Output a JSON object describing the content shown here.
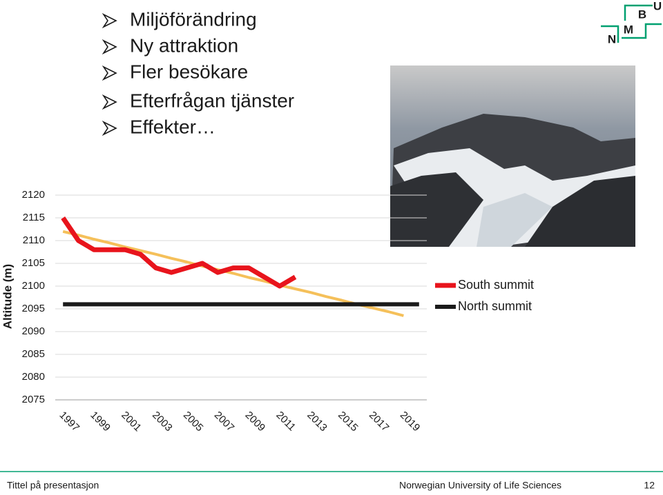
{
  "slide": {
    "bullets": [
      "Miljöförändring",
      "Ny attraktion",
      "Fler besökare",
      "Efterfrågan tjänster",
      "Effekter…"
    ],
    "logo": [
      "N",
      "M",
      "B",
      "U"
    ]
  },
  "chart_data": {
    "type": "line",
    "y_label": "Altitude (m)",
    "categories": [
      "1997",
      null,
      "1999",
      null,
      "2001",
      null,
      "2003",
      null,
      "2005",
      null,
      "2007",
      null,
      "2009",
      null,
      "2011",
      null,
      "2013",
      null,
      "2015",
      null,
      "2017",
      null,
      "2019",
      null
    ],
    "series": [
      {
        "name": "South summit",
        "color": "#e8141c",
        "values": [
          2115,
          2110,
          2108,
          2108,
          2108,
          2107,
          2104,
          2103,
          2104,
          2105,
          2103,
          2104,
          2104,
          2102,
          2100,
          2102,
          null,
          null,
          null,
          null,
          null,
          null,
          null,
          null
        ]
      },
      {
        "name": "North summit",
        "color": "#1a1a1a",
        "values": [
          2096,
          2096,
          2096,
          2096,
          2096,
          2096,
          2096,
          2096,
          2096,
          2096,
          2096,
          2096,
          2096,
          2096,
          2096,
          2096,
          2096,
          2096,
          2096,
          2096,
          2096,
          2096,
          2096,
          2096
        ]
      },
      {
        "color": "#f5c05a",
        "values": [
          2112,
          2111.2,
          2110.3,
          2109.5,
          2108.6,
          2107.8,
          2107,
          2106.1,
          2105.3,
          2104.4,
          2103.6,
          2102.8,
          2101.9,
          2101.1,
          2100.2,
          2099.4,
          2098.6,
          2097.7,
          2096.9,
          2096,
          2095.2,
          2094.4,
          2093.5,
          null
        ]
      }
    ],
    "ylim": [
      2075,
      2120
    ],
    "yticks": [
      2075,
      2080,
      2085,
      2090,
      2095,
      2100,
      2105,
      2110,
      2115,
      2120
    ],
    "grid": true,
    "legend": "right"
  },
  "footer": {
    "left": "Tittel på presentasjon",
    "center": "Norwegian University of Life Sciences",
    "page": "12"
  }
}
